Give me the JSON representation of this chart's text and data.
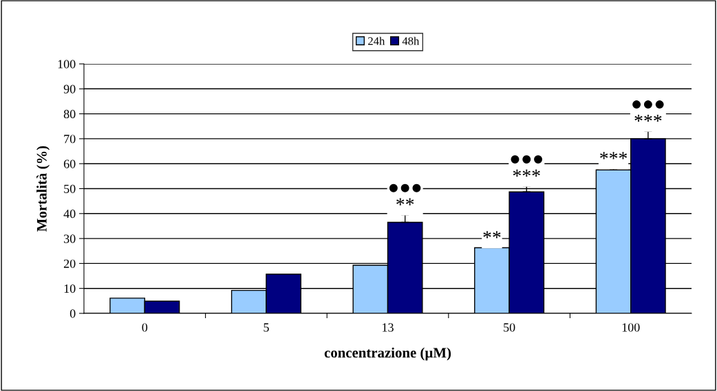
{
  "chart_data": {
    "type": "bar",
    "xlabel": "concentrazione (µM)",
    "ylabel": "Mortalità (%)",
    "categories": [
      "0",
      "5",
      "13",
      "50",
      "100"
    ],
    "series": [
      {
        "name": "24h",
        "color": "#99ccff",
        "values": [
          6.1,
          9.2,
          19.3,
          26.3,
          57.5
        ],
        "errors": [
          null,
          null,
          null,
          null,
          0.5
        ],
        "value_labels": [
          null,
          null,
          null,
          "**",
          "***"
        ]
      },
      {
        "name": "48h",
        "color": "#000080",
        "values": [
          4.9,
          15.7,
          36.5,
          48.7,
          70
        ],
        "errors": [
          null,
          null,
          3,
          2.3,
          3
        ],
        "value_labels": [
          null,
          null,
          "●●●\n**",
          "●●●\n***",
          "●●●\n***"
        ]
      }
    ],
    "ylim": [
      0,
      100
    ],
    "yticks": [
      0,
      10,
      20,
      30,
      40,
      50,
      60,
      70,
      80,
      90,
      100
    ],
    "grid": "y",
    "legend": "top"
  }
}
